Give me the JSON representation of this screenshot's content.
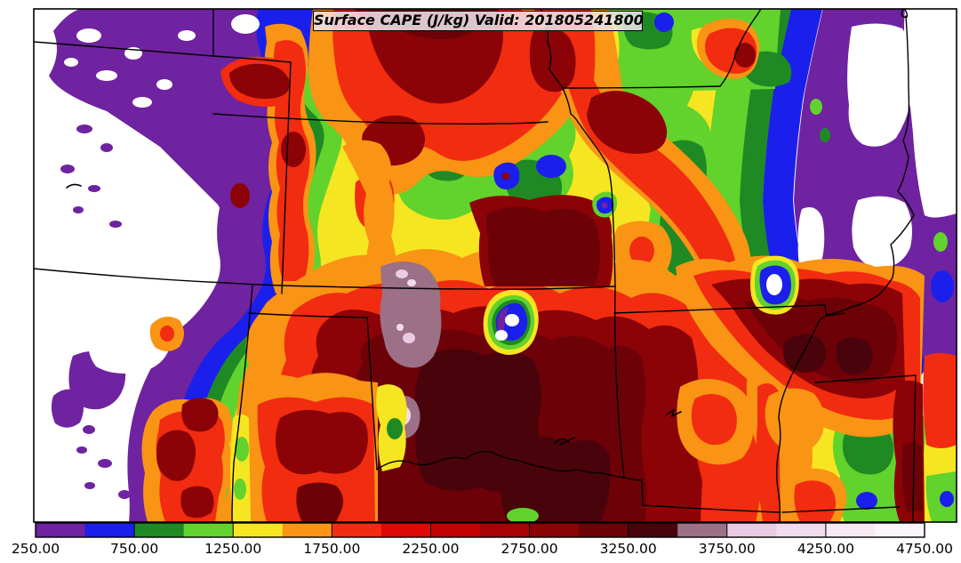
{
  "title": {
    "text": "Surface CAPE (J/kg) Valid: 201805241800"
  },
  "colorbar": {
    "units": "J/kg",
    "min": 250,
    "max": 4750,
    "interval": 250,
    "tick_step": 500,
    "tick_labels": [
      "250.00",
      "750.00",
      "1250.00",
      "1750.00",
      "2250.00",
      "2750.00",
      "3250.00",
      "3750.00",
      "4250.00",
      "4750.00"
    ],
    "below_min_color": "#FFFFFF",
    "frame_color": "#000000",
    "segments": [
      {
        "from": 250,
        "to": 500,
        "color": "#6F23A0"
      },
      {
        "from": 500,
        "to": 750,
        "color": "#1B1FEB"
      },
      {
        "from": 750,
        "to": 1000,
        "color": "#1F8A24"
      },
      {
        "from": 1000,
        "to": 1250,
        "color": "#62D22C"
      },
      {
        "from": 1250,
        "to": 1500,
        "color": "#F6E622"
      },
      {
        "from": 1500,
        "to": 1750,
        "color": "#F99414"
      },
      {
        "from": 1750,
        "to": 2000,
        "color": "#F12C10"
      },
      {
        "from": 2000,
        "to": 2250,
        "color": "#DE0905"
      },
      {
        "from": 2250,
        "to": 2500,
        "color": "#C20303"
      },
      {
        "from": 2500,
        "to": 2750,
        "color": "#A70204"
      },
      {
        "from": 2750,
        "to": 3000,
        "color": "#8B0306"
      },
      {
        "from": 3000,
        "to": 3250,
        "color": "#6C0207"
      },
      {
        "from": 3250,
        "to": 3500,
        "color": "#49030B"
      },
      {
        "from": 3500,
        "to": 3750,
        "color": "#9C7086"
      },
      {
        "from": 3750,
        "to": 4000,
        "color": "#EACBE3"
      },
      {
        "from": 4000,
        "to": 4250,
        "color": "#F1DBEC"
      },
      {
        "from": 4250,
        "to": 4500,
        "color": "#F7E9F4"
      },
      {
        "from": 4500,
        "to": 4750,
        "color": "#FBF4FA"
      }
    ]
  },
  "map": {
    "background_color": "#FFFFFF",
    "state_border_color": "#000000",
    "frame_color": "#000000"
  }
}
